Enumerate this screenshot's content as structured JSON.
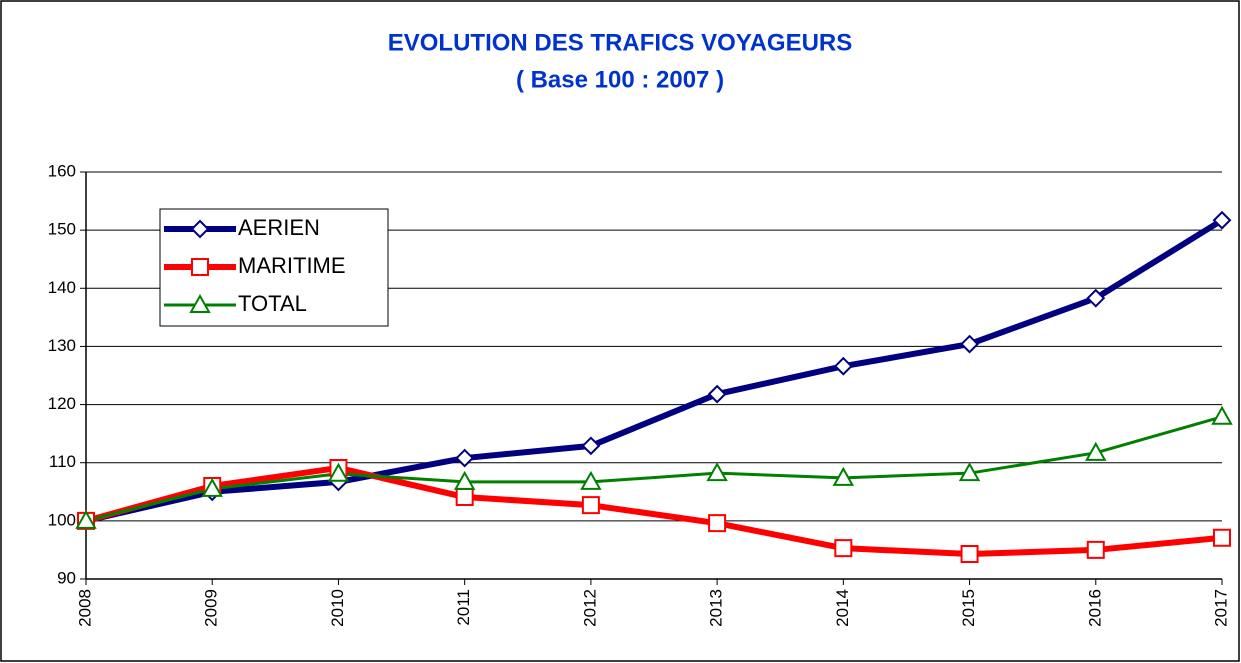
{
  "chart_data": {
    "type": "line",
    "title": "EVOLUTION DES TRAFICS VOYAGEURS",
    "subtitle": "( Base 100 : 2007 )",
    "categories": [
      "2008",
      "2009",
      "2010",
      "2011",
      "2012",
      "2013",
      "2014",
      "2015",
      "2016",
      "2017"
    ],
    "series": [
      {
        "name": "AERIEN",
        "color": "#000080",
        "marker": "diamond",
        "values": [
          100,
          105.0,
          106.7,
          110.8,
          112.9,
          121.8,
          126.6,
          130.4,
          138.3,
          151.7
        ]
      },
      {
        "name": "MARITIME",
        "color": "#ff0000",
        "marker": "square",
        "values": [
          100,
          106.0,
          109.1,
          104.1,
          102.7,
          99.6,
          95.3,
          94.3,
          95.0,
          97.1
        ]
      },
      {
        "name": "TOTAL",
        "color": "#008000",
        "marker": "triangle",
        "values": [
          100,
          105.5,
          108.1,
          106.7,
          106.7,
          108.2,
          107.4,
          108.2,
          111.7,
          117.9
        ]
      }
    ],
    "ylim": [
      90,
      160
    ],
    "yticks": [
      90,
      100,
      110,
      120,
      130,
      140,
      150,
      160
    ],
    "grid": true,
    "legend": "upper left"
  }
}
